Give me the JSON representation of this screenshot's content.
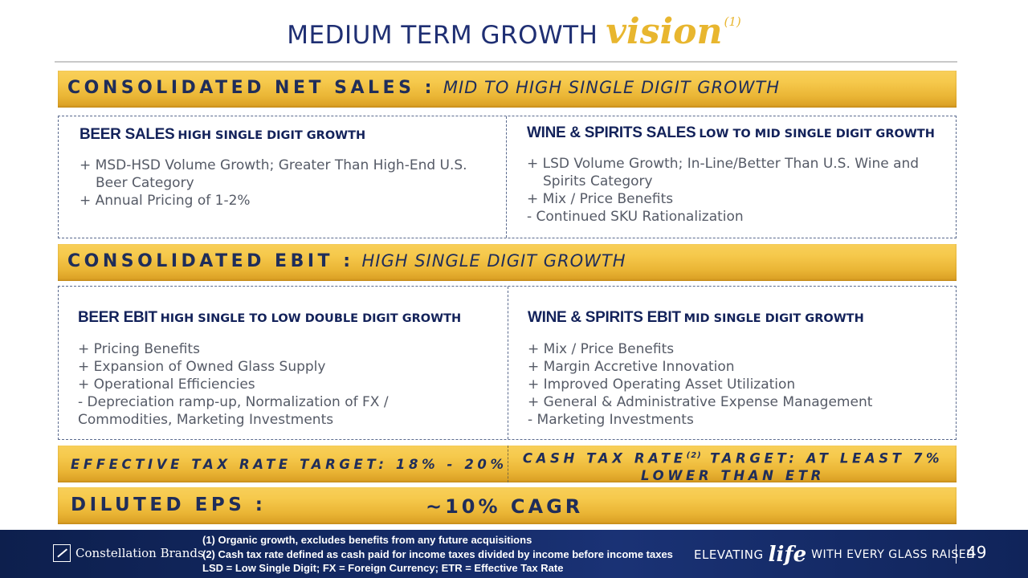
{
  "title": {
    "main": "MEDIUM TERM GROWTH",
    "accent": "vision",
    "footnote_ref": "(1)"
  },
  "net_sales": {
    "heading": "CONSOLIDATED NET SALES :",
    "subheading": "MID TO HIGH SINGLE DIGIT GROWTH",
    "beer": {
      "label": "BEER SALES",
      "growth": "HIGH SINGLE DIGIT GROWTH",
      "items": [
        "+ MSD-HSD Volume Growth; Greater Than High-End U.S.",
        "Beer Category",
        "+ Annual Pricing of 1-2%"
      ]
    },
    "wine": {
      "label": "WINE & SPIRITS SALES",
      "growth": "LOW TO MID SINGLE DIGIT GROWTH",
      "items": [
        "+ LSD Volume Growth; In-Line/Better Than U.S. Wine and",
        "Spirits Category",
        "+ Mix / Price Benefits",
        "- Continued SKU Rationalization"
      ]
    }
  },
  "ebit": {
    "heading": "CONSOLIDATED EBIT :",
    "subheading": "HIGH SINGLE DIGIT GROWTH",
    "beer": {
      "label": "BEER EBIT",
      "growth": "HIGH SINGLE TO LOW DOUBLE DIGIT GROWTH",
      "items": [
        "+ Pricing Benefits",
        "+ Expansion of Owned Glass Supply",
        "+ Operational Efficiencies",
        "- Depreciation ramp-up, Normalization of FX /",
        "Commodities, Marketing Investments"
      ]
    },
    "wine": {
      "label": "WINE & SPIRITS EBIT",
      "growth": "MID SINGLE DIGIT GROWTH",
      "items": [
        "+ Mix / Price Benefits",
        "+ Margin Accretive Innovation",
        "+ Improved Operating Asset Utilization",
        "+ General & Administrative Expense Management",
        "- Marketing Investments"
      ]
    }
  },
  "tax": {
    "effective": "EFFECTIVE TAX RATE TARGET: 18% - 20%",
    "cash_line1_a": "CASH TAX RATE",
    "cash_ref": "(2)",
    "cash_line1_b": " TARGET: AT LEAST 7%",
    "cash_line2": "LOWER THAN ETR"
  },
  "eps": {
    "heading": "DILUTED EPS :",
    "value": "~10% CAGR"
  },
  "footer": {
    "company": "Constellation Brands",
    "notes": [
      "(1)  Organic growth, excludes benefits from any future acquisitions",
      "(2)  Cash tax rate defined as cash paid for income taxes divided by income before income taxes",
      "LSD = Low Single Digit; FX = Foreign Currency; ETR = Effective Tax Rate"
    ],
    "tagline_1": "ELEVATING",
    "tagline_2": "life",
    "tagline_3": "WITH EVERY GLASS RAISED",
    "page": "49"
  }
}
